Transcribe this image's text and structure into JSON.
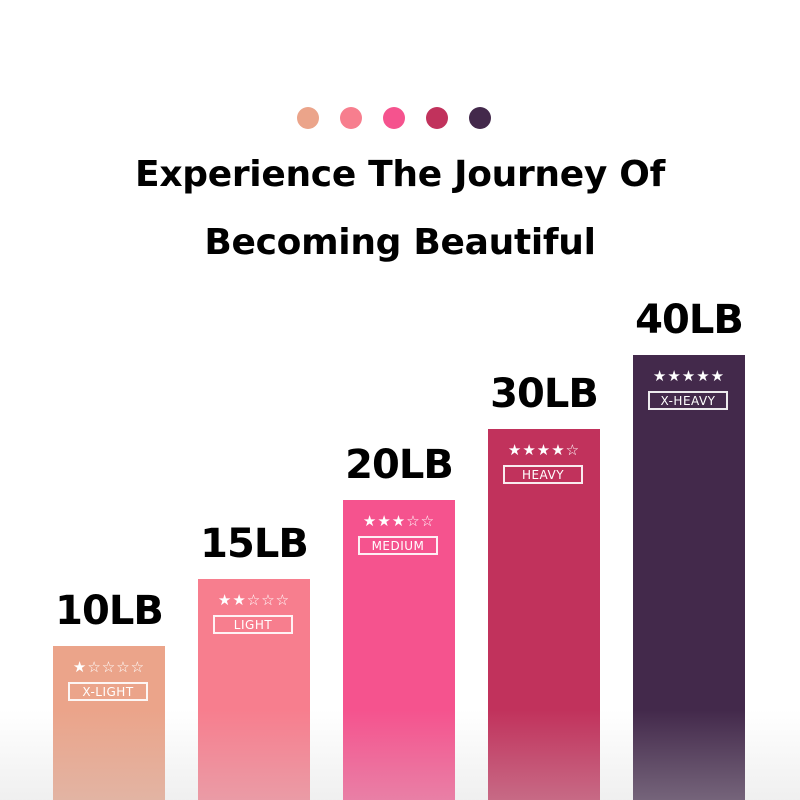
{
  "header": {
    "title_line1": "Experience The Journey Of",
    "title_line2": "Becoming Beautiful",
    "dot_colors": [
      "#EBA48A",
      "#F77E8E",
      "#F5538E",
      "#C1325C",
      "#43294B"
    ]
  },
  "chart_data": {
    "type": "bar",
    "categories": [
      "10LB",
      "15LB",
      "20LB",
      "30LB",
      "40LB"
    ],
    "values": [
      10,
      15,
      20,
      30,
      40
    ],
    "levels": [
      "X-LIGHT",
      "LIGHT",
      "MEDIUM",
      "HEAVY",
      "X-HEAVY"
    ],
    "stars": [
      1,
      2,
      3,
      4,
      5
    ],
    "max_stars": 5,
    "colors": [
      "#EBA48A",
      "#F77E8E",
      "#F5538E",
      "#C1325C",
      "#43294B"
    ],
    "xlabel": "",
    "ylabel": ""
  }
}
